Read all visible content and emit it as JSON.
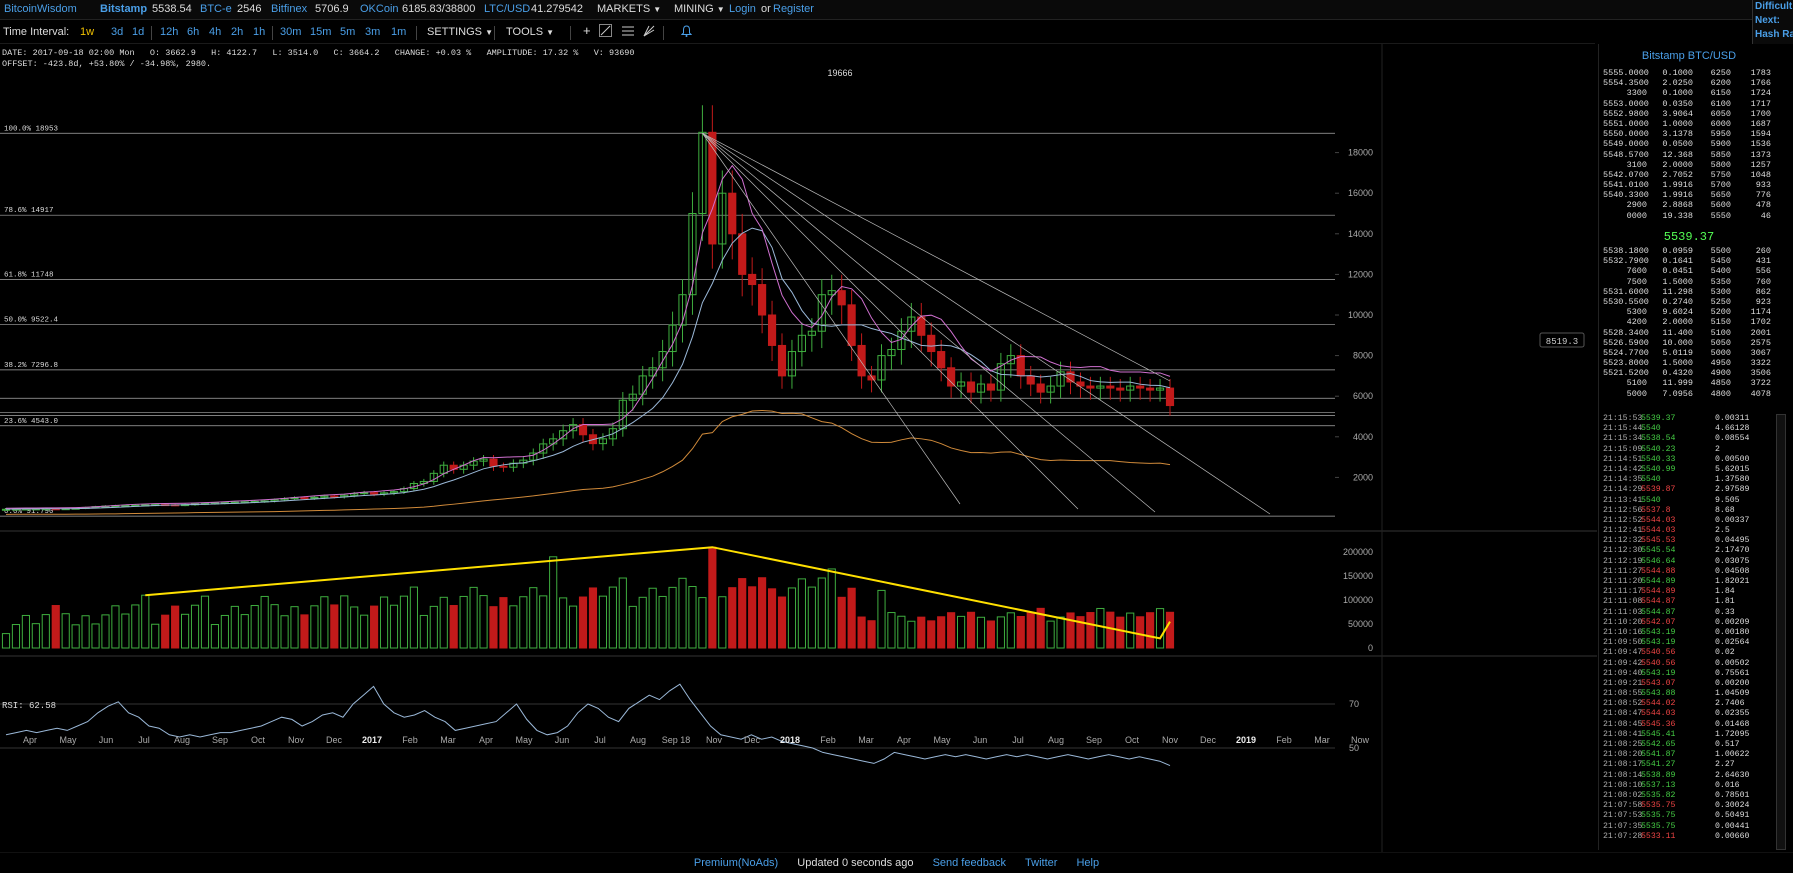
{
  "topbar": {
    "brand": "BitcoinWisdom",
    "markets": [
      {
        "name": "Bitstamp",
        "price": "5538.54"
      },
      {
        "name": "BTC-e",
        "price": "2546"
      },
      {
        "name": "Bitfinex",
        "price": "5706.9"
      },
      {
        "name": "OKCoin",
        "price": "6185.83/38800"
      },
      {
        "name": "LTC/USD",
        "price": "41.279542"
      }
    ],
    "menu_markets": "MARKETS",
    "menu_mining": "MINING",
    "login": "Login",
    "or": "or",
    "register": "Register",
    "edge_lines": [
      "Difficult",
      "Next:",
      "Hash Ra"
    ]
  },
  "toolbar": {
    "label": "Time Interval:",
    "intervals": [
      "1w",
      "3d",
      "1d",
      "12h",
      "6h",
      "4h",
      "2h",
      "1h",
      "30m",
      "15m",
      "5m",
      "3m",
      "1m"
    ],
    "active_interval": "1w",
    "settings": "SETTINGS",
    "tools": "TOOLS"
  },
  "info": {
    "line1": "DATE: 2017-09-18 02:00 Mon   O: 3662.9   H: 4122.7   L: 3514.0   C: 3664.2   CHANGE: +0.03 %   AMPLITUDE: 17.32 %   V: 93690",
    "line2": "OFFSET: -423.8d, +53.80% / -34.98%, 2980."
  },
  "chart_data": [
    {
      "type": "candlestick",
      "title": "Bitstamp BTC/USD weekly",
      "ylim": [
        0,
        20000
      ],
      "y_ticks": [
        2000,
        4000,
        6000,
        8000,
        10000,
        12000,
        14000,
        16000,
        18000
      ],
      "close_series": [
        430,
        440,
        445,
        450,
        455,
        450,
        460,
        480,
        520,
        560,
        590,
        610,
        620,
        630,
        640,
        660,
        650,
        640,
        660,
        700,
        720,
        740,
        760,
        780,
        800,
        820,
        840,
        900,
        960,
        1000,
        980,
        1020,
        1080,
        1050,
        1120,
        1200,
        1250,
        1180,
        1240,
        1300,
        1450,
        1700,
        1800,
        2200,
        2600,
        2400,
        2600,
        2800,
        2900,
        2550,
        2500,
        2700,
        2850,
        3200,
        3650,
        3900,
        4300,
        4600,
        4100,
        3664,
        3900,
        4400,
        5800,
        6100,
        7000,
        7400,
        8200,
        9500,
        11000,
        15000,
        19000,
        13500,
        16000,
        14000,
        12000,
        11500,
        10000,
        8500,
        7000,
        8200,
        9000,
        9200,
        11000,
        11200,
        10500,
        8500,
        7000,
        6800,
        8000,
        8300,
        9200,
        9900,
        9000,
        8200,
        7400,
        6500,
        6700,
        6200,
        6600,
        6300,
        7600,
        8000,
        7000,
        6600,
        6200,
        6500,
        7200,
        6700,
        6500,
        6400,
        6500,
        6400,
        6300,
        6500,
        6400,
        6300,
        6400,
        5539
      ],
      "fib_levels": [
        {
          "label": "100.0% 18953",
          "value": 18953
        },
        {
          "label": "78.6% 14917",
          "value": 14917
        },
        {
          "label": "61.8% 11748",
          "value": 11748
        },
        {
          "label": "50.0% 9522.4",
          "value": 9522.4
        },
        {
          "label": "38.2% 7296.8",
          "value": 7296.8
        },
        {
          "label": "23.6% 4543.0",
          "value": 4543.0
        },
        {
          "label": "0.0% 91.790",
          "value": 91.79
        }
      ],
      "peak_label": "19666",
      "last_price_label": "8519.3"
    },
    {
      "type": "bar",
      "title": "Volume",
      "ylim": [
        0,
        200000
      ],
      "y_ticks": [
        0,
        50000,
        100000,
        150000,
        200000
      ],
      "trend_start_value": 110000,
      "trend_peak_value": 210000,
      "trend_end_value": 20000
    },
    {
      "type": "line",
      "title": "RSI: 62.58",
      "ylim": [
        40,
        90
      ],
      "y_ticks": [
        50,
        70
      ],
      "values": [
        56,
        57,
        58,
        57,
        58,
        59,
        58,
        60,
        62,
        66,
        69,
        71,
        66,
        64,
        60,
        59,
        56,
        55,
        56,
        55,
        56,
        57,
        57,
        58,
        59,
        60,
        62,
        64,
        63,
        60,
        62,
        65,
        66,
        64,
        70,
        74,
        78,
        70,
        66,
        64,
        65,
        67,
        64,
        62,
        58,
        59,
        60,
        61,
        62,
        66,
        70,
        63,
        58,
        56,
        57,
        60,
        66,
        70,
        68,
        64,
        62,
        68,
        71,
        74,
        72,
        76,
        79,
        72,
        66,
        60,
        56,
        55,
        54,
        56,
        54,
        55,
        53,
        52,
        51,
        50,
        48,
        47,
        46,
        45,
        44,
        43,
        45,
        48,
        47,
        46,
        45,
        46,
        47,
        46,
        47,
        46,
        45,
        46,
        47,
        46,
        47,
        46,
        45,
        46,
        47,
        46,
        45,
        46,
        47,
        46,
        45,
        46,
        45,
        44,
        42
      ]
    }
  ],
  "x_axis": [
    "Apr",
    "May",
    "Jun",
    "Jul",
    "Aug",
    "Sep",
    "Oct",
    "Nov",
    "Dec",
    "2017",
    "Feb",
    "Mar",
    "Apr",
    "May",
    "Jun",
    "Jul",
    "Aug",
    "Sep 18",
    "Nov",
    "Dec",
    "2018",
    "Feb",
    "Mar",
    "Apr",
    "May",
    "Jun",
    "Jul",
    "Aug",
    "Sep",
    "Oct",
    "Nov",
    "Dec",
    "2019",
    "Feb",
    "Mar",
    "Now"
  ],
  "orderbook": {
    "title": "Bitstamp BTC/USD",
    "asks": [
      [
        "5555.0000",
        "0.1000",
        "6250",
        "1783"
      ],
      [
        "5554.3500",
        "2.0250",
        "6200",
        "1766"
      ],
      [
        "3300",
        "0.1000",
        "6150",
        "1724"
      ],
      [
        "5553.0000",
        "0.0350",
        "6100",
        "1717"
      ],
      [
        "5552.9800",
        "3.9064",
        "6050",
        "1700"
      ],
      [
        "5551.0000",
        "1.0000",
        "6000",
        "1687"
      ],
      [
        "5550.0000",
        "3.1378",
        "5950",
        "1594"
      ],
      [
        "5549.0000",
        "0.0500",
        "5900",
        "1536"
      ],
      [
        "5548.5700",
        "12.368",
        "5850",
        "1373"
      ],
      [
        "3100",
        "2.0000",
        "5800",
        "1257"
      ],
      [
        "5542.0700",
        "2.7052",
        "5750",
        "1048"
      ],
      [
        "5541.0100",
        "1.9916",
        "5700",
        "933"
      ],
      [
        "5540.3300",
        "1.9916",
        "5650",
        "776"
      ],
      [
        "2900",
        "2.8868",
        "5600",
        "478"
      ],
      [
        "0000",
        "19.338",
        "5550",
        "46"
      ]
    ],
    "last": "5539.37",
    "bids": [
      [
        "5538.1800",
        "0.0959",
        "5500",
        "260"
      ],
      [
        "5532.7900",
        "0.1641",
        "5450",
        "431"
      ],
      [
        "7600",
        "0.0451",
        "5400",
        "556"
      ],
      [
        "7500",
        "1.5000",
        "5350",
        "760"
      ],
      [
        "5531.6000",
        "11.298",
        "5300",
        "862"
      ],
      [
        "5530.5500",
        "0.2740",
        "5250",
        "923"
      ],
      [
        "5300",
        "9.6024",
        "5200",
        "1174"
      ],
      [
        "4200",
        "2.0000",
        "5150",
        "1702"
      ],
      [
        "5528.3400",
        "11.400",
        "5100",
        "2001"
      ],
      [
        "5526.5900",
        "10.000",
        "5050",
        "2575"
      ],
      [
        "5524.7700",
        "5.0119",
        "5000",
        "3067"
      ],
      [
        "5523.8000",
        "1.5000",
        "4950",
        "3322"
      ],
      [
        "5521.5200",
        "0.4320",
        "4900",
        "3506"
      ],
      [
        "5100",
        "11.999",
        "4850",
        "3722"
      ],
      [
        "5000",
        "7.0956",
        "4800",
        "4078"
      ]
    ]
  },
  "trades": [
    [
      "21:15:53",
      "5539.37",
      "0.00311",
      "g"
    ],
    [
      "21:15:44",
      "5540",
      "4.66128",
      "g"
    ],
    [
      "21:15:34",
      "5538.54",
      "0.08554",
      "g"
    ],
    [
      "21:15:09",
      "5540.23",
      "2",
      "g"
    ],
    [
      "21:14:51",
      "5540.33",
      "0.00500",
      "g"
    ],
    [
      "21:14:42",
      "5540.99",
      "5.62015",
      "g"
    ],
    [
      "21:14:35",
      "5540",
      "1.37580",
      "g"
    ],
    [
      "21:14:29",
      "5539.87",
      "2.97589",
      "rd"
    ],
    [
      "21:13:41",
      "5540",
      "9.505",
      "g"
    ],
    [
      "21:12:56",
      "5537.8",
      "8.68",
      "rd"
    ],
    [
      "21:12:52",
      "5544.03",
      "0.00337",
      "rd"
    ],
    [
      "21:12:41",
      "5544.03",
      "2.5",
      "rd"
    ],
    [
      "21:12:32",
      "5545.53",
      "0.04495",
      "rd"
    ],
    [
      "21:12:30",
      "5545.54",
      "2.17470",
      "g"
    ],
    [
      "21:12:19",
      "5546.64",
      "0.03075",
      "g"
    ],
    [
      "21:11:27",
      "5544.88",
      "0.04508",
      "rd"
    ],
    [
      "21:11:20",
      "5544.89",
      "1.82021",
      "g"
    ],
    [
      "21:11:17",
      "5544.89",
      "1.84",
      "rd"
    ],
    [
      "21:11:08",
      "5544.87",
      "1.81",
      "rd"
    ],
    [
      "21:11:03",
      "5544.87",
      "0.33",
      "g"
    ],
    [
      "21:10:20",
      "5542.07",
      "0.00209",
      "rd"
    ],
    [
      "21:10:16",
      "5543.19",
      "0.00180",
      "g"
    ],
    [
      "21:09:50",
      "5543.19",
      "0.02564",
      "g"
    ],
    [
      "21:09:47",
      "5540.56",
      "0.02",
      "rd"
    ],
    [
      "21:09:42",
      "5540.56",
      "0.00502",
      "rd"
    ],
    [
      "21:09:40",
      "5543.19",
      "0.75561",
      "g"
    ],
    [
      "21:09:21",
      "5543.07",
      "0.00200",
      "rd"
    ],
    [
      "21:08:55",
      "5543.88",
      "1.04509",
      "g"
    ],
    [
      "21:08:52",
      "5544.02",
      "2.7406",
      "rd"
    ],
    [
      "21:08:47",
      "5544.03",
      "0.02355",
      "rd"
    ],
    [
      "21:08:45",
      "5545.36",
      "0.01468",
      "rd"
    ],
    [
      "21:08:41",
      "5545.41",
      "1.72095",
      "g"
    ],
    [
      "21:08:25",
      "5542.65",
      "0.517",
      "g"
    ],
    [
      "21:08:20",
      "5541.87",
      "1.00622",
      "g"
    ],
    [
      "21:08:17",
      "5541.27",
      "2.27",
      "g"
    ],
    [
      "21:08:14",
      "5538.89",
      "2.64630",
      "g"
    ],
    [
      "21:08:10",
      "5537.13",
      "0.016",
      "g"
    ],
    [
      "21:08:02",
      "5535.82",
      "0.78501",
      "g"
    ],
    [
      "21:07:58",
      "5535.75",
      "0.30024",
      "rd"
    ],
    [
      "21:07:53",
      "5535.75",
      "0.50491",
      "g"
    ],
    [
      "21:07:35",
      "5535.75",
      "0.00441",
      "g"
    ],
    [
      "21:07:28",
      "5533.11",
      "0.00660",
      "rd"
    ]
  ],
  "footer": {
    "premium": "Premium(NoAds)",
    "updated": "Updated 0 seconds ago",
    "feedback": "Send feedback",
    "twitter": "Twitter",
    "help": "Help"
  },
  "colors": {
    "up": "#3fae3f",
    "down": "#c21a1a",
    "trend": "#ffe000",
    "ma_blue": "#9ab8d8",
    "ma_pink": "#d070d0",
    "ma_orange": "#d08a3a"
  }
}
